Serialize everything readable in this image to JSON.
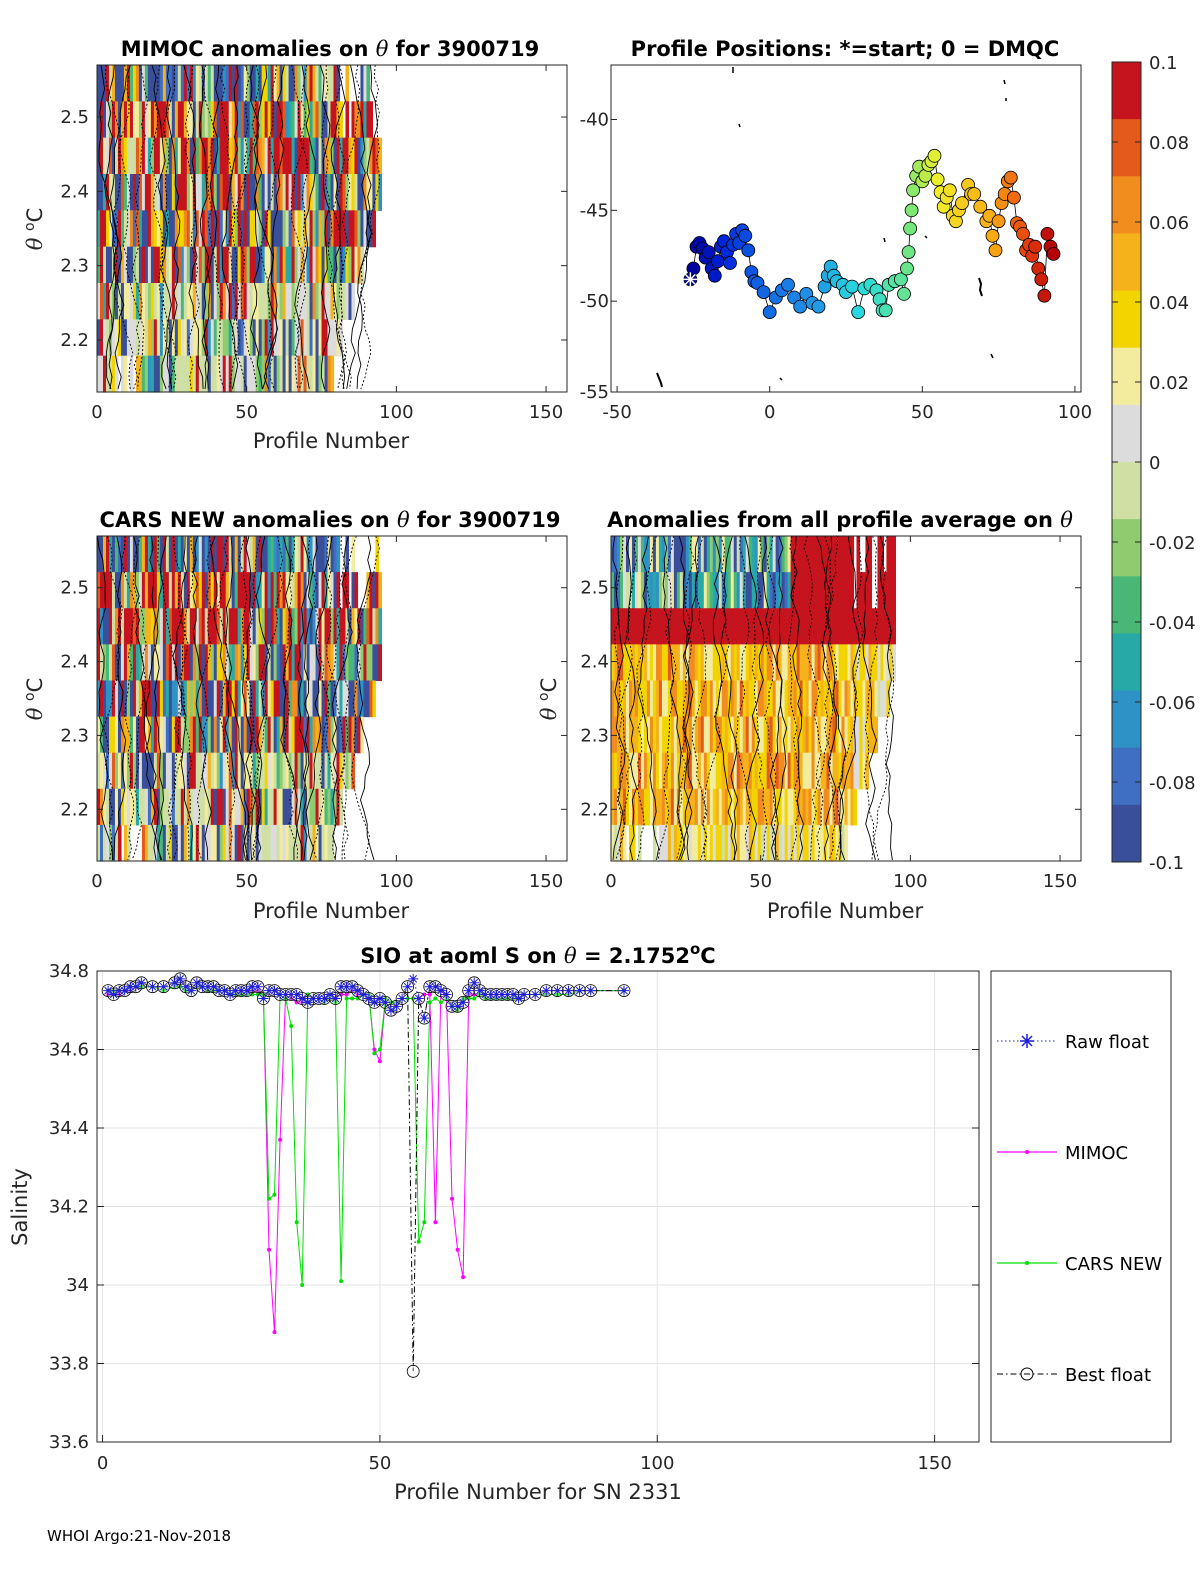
{
  "footer": "WHOI Argo:21-Nov-2018",
  "colorbar": {
    "ticks": [
      "0.1",
      "0.08",
      "0.06",
      "0.04",
      "0.02",
      "0",
      "-0.02",
      "-0.04",
      "-0.06",
      "-0.08",
      "-0.1"
    ],
    "range": [
      -0.1,
      0.1
    ],
    "colormap": [
      "#3a4f9a",
      "#3e6fc2",
      "#2f92c6",
      "#27a9a8",
      "#49b877",
      "#8fcc6f",
      "#d0e0a5",
      "#dcdcdc",
      "#f3ec9f",
      "#f2d400",
      "#f6b21a",
      "#f08d1e",
      "#e45a1c",
      "#c5141e"
    ]
  },
  "chart_data": [
    {
      "type": "heatmap",
      "title_pre": "MIMOC anomalies on ",
      "title_theta": "θ",
      "title_post": "  for 3900719",
      "xlabel": "Profile Number",
      "ylabel_theta": "θ",
      "ylabel_o": "o",
      "ylabel_c": "C",
      "xlim": [
        0,
        157
      ],
      "ylim": [
        2.13,
        2.57
      ],
      "xticks": [
        0,
        50,
        100,
        150
      ],
      "yticks": [
        2.2,
        2.3,
        2.4,
        2.5
      ],
      "profiles": 95
    },
    {
      "type": "scatter",
      "title": "Profile Positions: *=start; 0 = DMQC",
      "xlim": [
        -52,
        102
      ],
      "ylim": [
        -55,
        -37
      ],
      "xticks": [
        -50,
        0,
        50,
        100
      ],
      "yticks": [
        -40,
        -45,
        -50,
        -55
      ],
      "track": [
        [
          -26,
          -48.8
        ],
        [
          -25,
          -48.2
        ],
        [
          -24,
          -47.0
        ],
        [
          -23,
          -46.8
        ],
        [
          -22,
          -47.1
        ],
        [
          -21,
          -47.6
        ],
        [
          -20,
          -47.3
        ],
        [
          -19,
          -48.2
        ],
        [
          -18,
          -48.6
        ],
        [
          -17,
          -47.8
        ],
        [
          -16,
          -47.0
        ],
        [
          -15,
          -46.7
        ],
        [
          -14,
          -47.3
        ],
        [
          -13,
          -47.9
        ],
        [
          -12,
          -46.9
        ],
        [
          -11,
          -46.3
        ],
        [
          -10,
          -46.8
        ],
        [
          -9,
          -46.1
        ],
        [
          -8,
          -46.4
        ],
        [
          -7,
          -47.2
        ],
        [
          -6,
          -48.4
        ],
        [
          -5,
          -48.9
        ],
        [
          -4,
          -49.0
        ],
        [
          -2,
          -49.5
        ],
        [
          0,
          -50.6
        ],
        [
          2,
          -49.8
        ],
        [
          4,
          -49.4
        ],
        [
          6,
          -49.1
        ],
        [
          8,
          -49.8
        ],
        [
          10,
          -50.3
        ],
        [
          12,
          -49.6
        ],
        [
          14,
          -50.1
        ],
        [
          16,
          -50.3
        ],
        [
          18,
          -49.2
        ],
        [
          19,
          -48.6
        ],
        [
          20,
          -48.1
        ],
        [
          21,
          -48.6
        ],
        [
          22,
          -48.9
        ],
        [
          24,
          -49.1
        ],
        [
          25,
          -49.5
        ],
        [
          27,
          -49.2
        ],
        [
          29,
          -50.6
        ],
        [
          31,
          -49.3
        ],
        [
          33,
          -49.1
        ],
        [
          35,
          -49.4
        ],
        [
          36,
          -49.9
        ],
        [
          37,
          -50.5
        ],
        [
          38,
          -50.5
        ],
        [
          39,
          -49.1
        ],
        [
          41,
          -48.9
        ],
        [
          43,
          -48.8
        ],
        [
          44,
          -49.6
        ],
        [
          45,
          -48.2
        ],
        [
          45.5,
          -47.3
        ],
        [
          46,
          -46.0
        ],
        [
          46.5,
          -45.0
        ],
        [
          47,
          -43.9
        ],
        [
          48,
          -43.1
        ],
        [
          49,
          -42.6
        ],
        [
          50,
          -43.4
        ],
        [
          51,
          -43.1
        ],
        [
          52,
          -42.5
        ],
        [
          53,
          -42.3
        ],
        [
          54,
          -42.0
        ],
        [
          55,
          -43.3
        ],
        [
          56,
          -44.0
        ],
        [
          57,
          -44.8
        ],
        [
          58,
          -44.3
        ],
        [
          59,
          -43.9
        ],
        [
          60,
          -45.3
        ],
        [
          61,
          -45.6
        ],
        [
          62,
          -45.0
        ],
        [
          63,
          -44.6
        ],
        [
          65,
          -43.6
        ],
        [
          66,
          -44.1
        ],
        [
          67,
          -44.1
        ],
        [
          69,
          -44.8
        ],
        [
          71,
          -45.6
        ],
        [
          72,
          -45.3
        ],
        [
          73,
          -46.4
        ],
        [
          74,
          -47.2
        ],
        [
          75,
          -45.6
        ],
        [
          76,
          -44.6
        ],
        [
          77,
          -44.1
        ],
        [
          78,
          -43.4
        ],
        [
          79,
          -43.2
        ],
        [
          80,
          -44.3
        ],
        [
          81,
          -45.7
        ],
        [
          82,
          -45.9
        ],
        [
          83,
          -46.3
        ],
        [
          84,
          -47.2
        ],
        [
          85,
          -46.9
        ],
        [
          86,
          -47.5
        ],
        [
          87,
          -47.0
        ],
        [
          88,
          -48.2
        ],
        [
          89,
          -48.8
        ],
        [
          90,
          -49.7
        ],
        [
          91,
          -46.3
        ],
        [
          92,
          -47.0
        ],
        [
          93,
          -47.4
        ]
      ]
    },
    {
      "type": "heatmap",
      "title_pre": "CARS NEW anomalies on ",
      "title_theta": "θ",
      "title_post": " for 3900719",
      "xlabel": "Profile Number",
      "ylabel_theta": "θ",
      "ylabel_o": "o",
      "ylabel_c": "C",
      "xlim": [
        0,
        157
      ],
      "ylim": [
        2.13,
        2.57
      ],
      "xticks": [
        0,
        50,
        100,
        150
      ],
      "yticks": [
        2.2,
        2.3,
        2.4,
        2.5
      ],
      "profiles": 95
    },
    {
      "type": "heatmap",
      "title_pre": "Anomalies from all profile average on ",
      "title_theta": "θ",
      "title_post": "",
      "xlabel": "Profile Number",
      "ylabel_theta": "θ",
      "ylabel_o": "o",
      "ylabel_c": "C",
      "xlim": [
        0,
        157
      ],
      "ylim": [
        2.13,
        2.57
      ],
      "xticks": [
        0,
        50,
        100,
        150
      ],
      "yticks": [
        2.2,
        2.3,
        2.4,
        2.5
      ],
      "profiles": 95
    },
    {
      "type": "line",
      "title_pre": "SIO at aoml S on ",
      "title_theta": "θ",
      "title_post": " = 2.1752",
      "title_o": "o",
      "title_c": "C",
      "xlabel": "Profile Number for SN 2331",
      "ylabel": "Salinity",
      "xlim": [
        -1,
        158
      ],
      "ylim": [
        33.6,
        34.8
      ],
      "xticks": [
        0,
        50,
        100,
        150
      ],
      "yticks": [
        34.8,
        34.6,
        34.4,
        34.2,
        34,
        33.8,
        33.6
      ],
      "legend": [
        "Raw float",
        "MIMOC",
        "CARS NEW",
        "Best float"
      ],
      "x": [
        1,
        2,
        3,
        4,
        5,
        6,
        7,
        9,
        11,
        13,
        14,
        15,
        16,
        17,
        18,
        19,
        20,
        21,
        22,
        23,
        24,
        25,
        26,
        27,
        28,
        29,
        30,
        31,
        32,
        33,
        34,
        35,
        36,
        37,
        38,
        39,
        40,
        41,
        42,
        43,
        44,
        45,
        46,
        47,
        48,
        49,
        50,
        51,
        52,
        53,
        54,
        55,
        56,
        57,
        58,
        59,
        60,
        61,
        62,
        63,
        64,
        65,
        66,
        67,
        68,
        69,
        70,
        71,
        72,
        73,
        74,
        75,
        76,
        78,
        80,
        82,
        84,
        86,
        88,
        94
      ],
      "series": [
        {
          "name": "Raw float",
          "values": [
            34.75,
            34.74,
            34.75,
            34.75,
            34.76,
            34.76,
            34.77,
            34.76,
            34.76,
            34.77,
            34.78,
            34.76,
            34.75,
            34.77,
            34.76,
            34.76,
            34.76,
            34.75,
            34.75,
            34.74,
            34.75,
            34.75,
            34.75,
            34.76,
            34.76,
            34.73,
            34.75,
            34.75,
            34.74,
            34.74,
            34.74,
            34.74,
            34.73,
            34.72,
            34.73,
            34.73,
            34.73,
            34.74,
            34.73,
            34.76,
            34.76,
            34.76,
            34.75,
            34.74,
            34.73,
            34.72,
            34.73,
            34.72,
            34.7,
            34.71,
            34.73,
            34.76,
            34.78,
            34.73,
            34.68,
            34.76,
            34.76,
            34.75,
            34.74,
            34.71,
            34.71,
            34.72,
            34.75,
            34.77,
            34.75,
            34.74,
            34.74,
            34.74,
            34.74,
            34.74,
            34.74,
            34.73,
            34.74,
            34.74,
            34.75,
            34.75,
            34.75,
            34.75,
            34.75,
            34.75
          ]
        },
        {
          "name": "MIMOC",
          "values": [
            34.74,
            34.75,
            34.74,
            34.75,
            34.75,
            34.76,
            34.76,
            34.76,
            34.75,
            34.76,
            34.76,
            34.75,
            34.75,
            34.76,
            34.76,
            34.75,
            34.75,
            34.75,
            34.75,
            34.74,
            34.74,
            34.75,
            34.74,
            34.75,
            34.75,
            34.74,
            34.09,
            33.88,
            34.37,
            34.74,
            34.73,
            34.72,
            34.72,
            34.74,
            34.73,
            34.73,
            34.73,
            34.73,
            34.73,
            34.74,
            34.74,
            34.75,
            34.74,
            34.74,
            34.74,
            34.6,
            34.57,
            34.73,
            34.72,
            34.72,
            34.73,
            34.73,
            34.73,
            34.73,
            34.74,
            34.74,
            34.16,
            34.75,
            34.74,
            34.22,
            34.09,
            34.02,
            34.74,
            34.74,
            34.74,
            34.73,
            34.73,
            34.74,
            34.74,
            34.73,
            34.73,
            34.73,
            34.74,
            34.74,
            34.74,
            34.74,
            34.74,
            34.75,
            34.75,
            34.75
          ]
        },
        {
          "name": "CARS NEW",
          "values": [
            34.75,
            34.75,
            34.75,
            34.75,
            34.76,
            34.76,
            34.76,
            34.76,
            34.75,
            34.76,
            34.76,
            34.75,
            34.75,
            34.76,
            34.76,
            34.75,
            34.75,
            34.75,
            34.75,
            34.74,
            34.74,
            34.74,
            34.74,
            34.74,
            34.74,
            34.74,
            34.22,
            34.23,
            34.74,
            34.73,
            34.66,
            34.16,
            34.0,
            34.74,
            34.73,
            34.73,
            34.72,
            34.73,
            34.72,
            34.01,
            34.73,
            34.73,
            34.73,
            34.74,
            34.74,
            34.59,
            34.6,
            34.73,
            34.72,
            34.72,
            34.73,
            34.73,
            34.73,
            34.11,
            34.16,
            34.72,
            34.73,
            34.72,
            34.73,
            34.71,
            34.7,
            34.73,
            34.73,
            34.73,
            34.74,
            34.73,
            34.73,
            34.73,
            34.73,
            34.73,
            34.73,
            34.73,
            34.74,
            34.74,
            34.74,
            34.74,
            34.74,
            34.75,
            34.75,
            34.75
          ]
        },
        {
          "name": "Best float",
          "values": [
            34.75,
            34.74,
            34.75,
            34.75,
            34.76,
            34.76,
            34.77,
            34.76,
            34.76,
            34.77,
            34.78,
            34.76,
            34.75,
            34.77,
            34.76,
            34.76,
            34.76,
            34.75,
            34.75,
            34.74,
            34.75,
            34.75,
            34.75,
            34.76,
            34.76,
            34.73,
            34.75,
            34.75,
            34.74,
            34.74,
            34.74,
            34.74,
            34.73,
            34.72,
            34.73,
            34.73,
            34.73,
            34.74,
            34.73,
            34.76,
            34.76,
            34.76,
            34.75,
            34.74,
            34.73,
            34.72,
            34.73,
            34.72,
            34.7,
            34.71,
            34.73,
            34.76,
            33.78,
            34.73,
            34.68,
            34.76,
            34.76,
            34.75,
            34.74,
            34.71,
            34.71,
            34.72,
            34.75,
            34.77,
            34.75,
            34.74,
            34.74,
            34.74,
            34.74,
            34.74,
            34.74,
            34.73,
            34.74,
            34.74,
            34.75,
            34.75,
            34.75,
            34.75,
            34.75,
            34.75
          ]
        }
      ]
    }
  ]
}
